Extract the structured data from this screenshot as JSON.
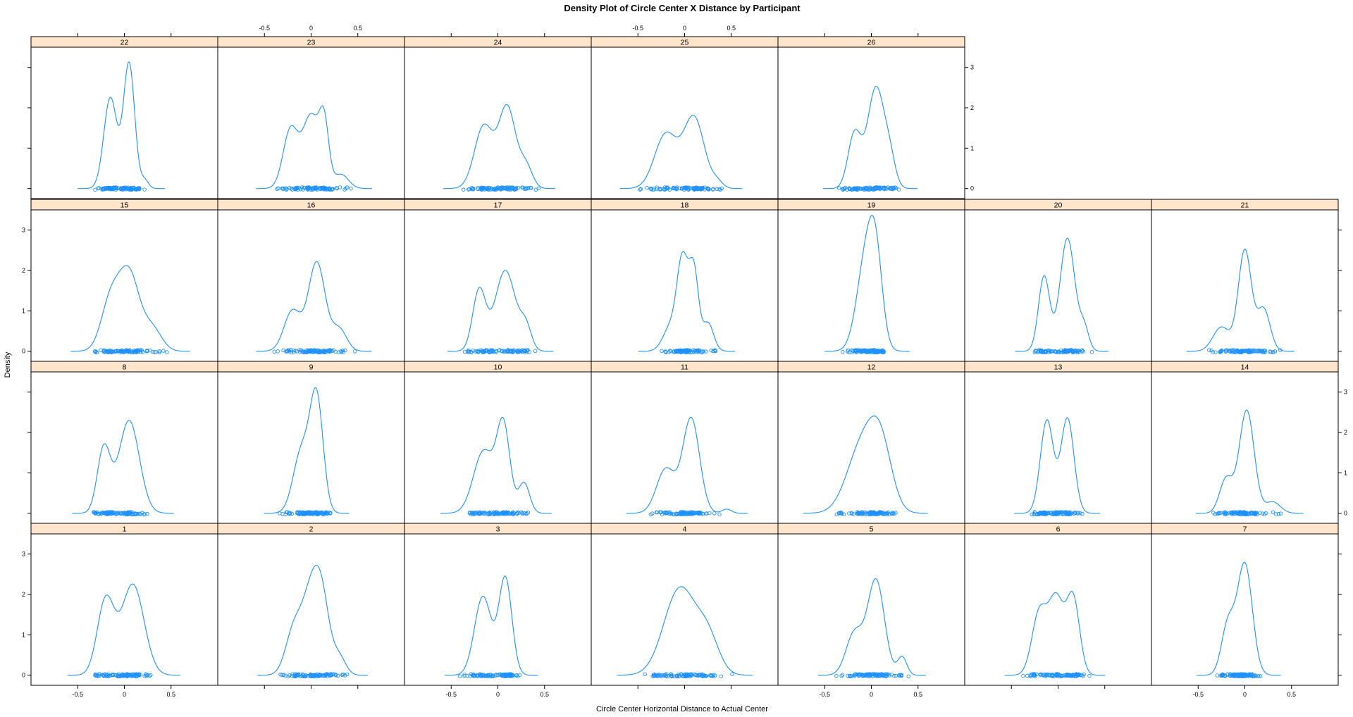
{
  "chart_data": {
    "type": "density",
    "title": "Density Plot of Circle Center X Distance by Participant",
    "xlabel": "Circle Center Horizontal Distance to Actual Center",
    "ylabel": "Density",
    "xlim": [
      -1.0,
      1.0
    ],
    "ylim": [
      -0.25,
      3.5
    ],
    "x_ticks": [
      -0.5,
      0.0,
      0.5
    ],
    "y_ticks": [
      0,
      1,
      2,
      3
    ],
    "layout": {
      "columns": 7,
      "rows": 4
    },
    "colors": {
      "density": "#1e90ff",
      "strip_bg": "#ffe5cc",
      "frame": "#000000"
    },
    "panels": [
      {
        "label": "1",
        "peaks": [
          [
            -0.2,
            0.09,
            1.85
          ],
          [
            0.09,
            0.12,
            2.25
          ]
        ]
      },
      {
        "label": "2",
        "peaks": [
          [
            -0.18,
            0.09,
            1.15
          ],
          [
            0.0,
            0.09,
            1.85
          ],
          [
            0.12,
            0.08,
            1.6
          ],
          [
            0.3,
            0.07,
            0.45
          ]
        ]
      },
      {
        "label": "3",
        "peaks": [
          [
            -0.16,
            0.09,
            1.95
          ],
          [
            0.08,
            0.07,
            2.4
          ]
        ]
      },
      {
        "label": "4",
        "peaks": [
          [
            -0.05,
            0.17,
            2.15
          ],
          [
            0.25,
            0.12,
            0.85
          ]
        ]
      },
      {
        "label": "5",
        "peaks": [
          [
            -0.18,
            0.09,
            1.05
          ],
          [
            0.05,
            0.09,
            2.35
          ],
          [
            0.33,
            0.05,
            0.45
          ]
        ]
      },
      {
        "label": "6",
        "peaks": [
          [
            -0.2,
            0.08,
            1.55
          ],
          [
            -0.02,
            0.08,
            1.85
          ],
          [
            0.16,
            0.07,
            1.9
          ]
        ]
      },
      {
        "label": "7",
        "peaks": [
          [
            -0.18,
            0.07,
            1.25
          ],
          [
            0.0,
            0.08,
            2.75
          ]
        ]
      },
      {
        "label": "8",
        "peaks": [
          [
            -0.22,
            0.07,
            1.6
          ],
          [
            0.05,
            0.11,
            2.3
          ]
        ]
      },
      {
        "label": "9",
        "peaks": [
          [
            -0.1,
            0.09,
            1.55
          ],
          [
            0.06,
            0.07,
            2.75
          ]
        ]
      },
      {
        "label": "10",
        "peaks": [
          [
            -0.15,
            0.11,
            1.55
          ],
          [
            0.06,
            0.07,
            2.1
          ],
          [
            0.28,
            0.06,
            0.75
          ]
        ]
      },
      {
        "label": "11",
        "peaks": [
          [
            -0.2,
            0.1,
            1.1
          ],
          [
            0.07,
            0.09,
            2.35
          ],
          [
            0.45,
            0.05,
            0.1
          ]
        ]
      },
      {
        "label": "12",
        "peaks": [
          [
            -0.1,
            0.16,
            1.65
          ],
          [
            0.1,
            0.12,
            1.45
          ]
        ]
      },
      {
        "label": "13",
        "peaks": [
          [
            -0.12,
            0.07,
            2.3
          ],
          [
            0.1,
            0.07,
            2.35
          ]
        ]
      },
      {
        "label": "14",
        "peaks": [
          [
            -0.2,
            0.07,
            0.85
          ],
          [
            0.02,
            0.08,
            2.55
          ],
          [
            0.3,
            0.08,
            0.28
          ]
        ]
      },
      {
        "label": "15",
        "peaks": [
          [
            -0.15,
            0.1,
            1.2
          ],
          [
            0.05,
            0.11,
            1.9
          ],
          [
            0.3,
            0.1,
            0.55
          ]
        ]
      },
      {
        "label": "16",
        "peaks": [
          [
            -0.2,
            0.09,
            1.0
          ],
          [
            0.06,
            0.09,
            2.2
          ],
          [
            0.3,
            0.08,
            0.55
          ]
        ]
      },
      {
        "label": "17",
        "peaks": [
          [
            -0.2,
            0.07,
            1.5
          ],
          [
            0.08,
            0.11,
            2.0
          ],
          [
            0.3,
            0.06,
            0.55
          ]
        ]
      },
      {
        "label": "18",
        "peaks": [
          [
            -0.15,
            0.08,
            0.6
          ],
          [
            -0.02,
            0.06,
            2.2
          ],
          [
            0.1,
            0.05,
            1.9
          ],
          [
            0.25,
            0.06,
            0.7
          ]
        ]
      },
      {
        "label": "19",
        "peaks": [
          [
            -0.05,
            0.1,
            2.4
          ],
          [
            0.05,
            0.07,
            1.6
          ]
        ]
      },
      {
        "label": "20",
        "peaks": [
          [
            -0.15,
            0.06,
            1.85
          ],
          [
            0.1,
            0.08,
            2.8
          ],
          [
            0.28,
            0.05,
            0.55
          ]
        ]
      },
      {
        "label": "21",
        "peaks": [
          [
            -0.25,
            0.09,
            0.6
          ],
          [
            0.0,
            0.07,
            2.5
          ],
          [
            0.2,
            0.07,
            1.05
          ]
        ]
      },
      {
        "label": "22",
        "peaks": [
          [
            -0.15,
            0.07,
            2.25
          ],
          [
            0.05,
            0.06,
            3.1
          ],
          [
            0.22,
            0.04,
            0.2
          ]
        ]
      },
      {
        "label": "23",
        "peaks": [
          [
            -0.22,
            0.08,
            1.45
          ],
          [
            0.0,
            0.09,
            1.8
          ],
          [
            0.14,
            0.05,
            1.4
          ],
          [
            0.32,
            0.08,
            0.35
          ]
        ]
      },
      {
        "label": "24",
        "peaks": [
          [
            -0.15,
            0.1,
            1.55
          ],
          [
            0.1,
            0.09,
            2.0
          ],
          [
            0.3,
            0.07,
            0.55
          ]
        ]
      },
      {
        "label": "25",
        "peaks": [
          [
            -0.2,
            0.12,
            1.35
          ],
          [
            0.1,
            0.11,
            1.75
          ],
          [
            0.35,
            0.06,
            0.15
          ]
        ]
      },
      {
        "label": "26",
        "peaks": [
          [
            -0.18,
            0.07,
            1.35
          ],
          [
            0.05,
            0.09,
            2.5
          ],
          [
            0.2,
            0.06,
            0.6
          ]
        ]
      }
    ]
  }
}
